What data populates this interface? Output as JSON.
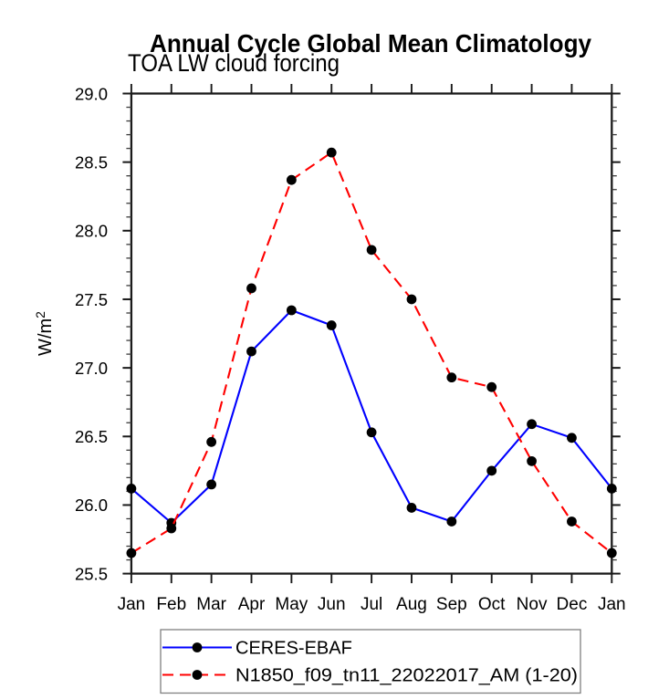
{
  "header": {
    "title": "Annual Cycle Global Mean Climatology",
    "subtitle": "TOA LW cloud forcing"
  },
  "chart_data": {
    "type": "line",
    "title": "Annual Cycle Global Mean Climatology",
    "subtitle": "TOA LW cloud forcing",
    "xlabel": "",
    "ylabel": "W/m2",
    "ylabel_parts": {
      "base": "W/m",
      "sup": "2"
    },
    "categories": [
      "Jan",
      "Feb",
      "Mar",
      "Apr",
      "May",
      "Jun",
      "Jul",
      "Aug",
      "Sep",
      "Oct",
      "Nov",
      "Dec",
      "Jan"
    ],
    "ylim": [
      25.5,
      29.0
    ],
    "ytick_major_step": 0.5,
    "ytick_minor_step": 0.1,
    "ytick_labels": [
      "25.5",
      "26.0",
      "26.5",
      "27.0",
      "27.5",
      "28.0",
      "28.5",
      "29.0"
    ],
    "grid": false,
    "legend_position": "bottom",
    "series": [
      {
        "name": "CERES-EBAF",
        "line_color": "#0000ff",
        "line_style": "solid",
        "marker": "filled-circle",
        "marker_color": "#000000",
        "values": [
          26.12,
          25.87,
          26.15,
          27.12,
          27.42,
          27.31,
          26.53,
          25.98,
          25.88,
          26.25,
          26.59,
          26.49,
          26.12
        ]
      },
      {
        "name": "N1850_f09_tn11_22022017_AM (1-20)",
        "line_color": "#ff0000",
        "line_style": "dashed",
        "marker": "filled-circle",
        "marker_color": "#000000",
        "values": [
          25.65,
          25.83,
          26.46,
          27.58,
          28.37,
          28.57,
          27.86,
          27.5,
          26.93,
          26.86,
          26.32,
          25.88,
          25.65
        ]
      }
    ]
  },
  "colors": {
    "axis": "#1a1a1a",
    "minor_tick": "#3c3c3c",
    "text": "#000000",
    "legend_border": "#808080",
    "background": "#ffffff"
  }
}
